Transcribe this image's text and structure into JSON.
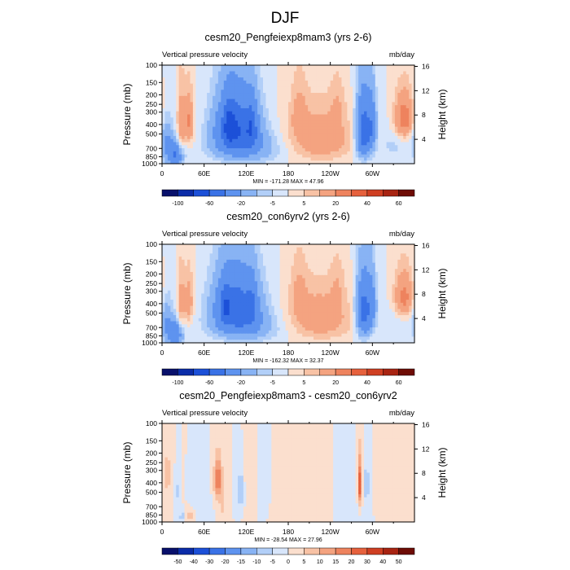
{
  "figure": {
    "title": "DJF"
  },
  "chart_data": [
    {
      "type": "heatmap",
      "title": "cesm20_Pengfeiexp8mam3 (yrs 2-6)",
      "left_string": "Vertical pressure velocity",
      "right_string": "mb/day",
      "ylabel": "Pressure (mb)",
      "y2label": "Height (km)",
      "xticks": [
        "0",
        "60E",
        "120E",
        "180",
        "120W",
        "60W"
      ],
      "xtick_lons": [
        0,
        60,
        120,
        180,
        240,
        300
      ],
      "xlim": [
        0,
        360
      ],
      "pressure_ticks": [
        "100",
        "150",
        "200",
        "250",
        "300",
        "400",
        "500",
        "700",
        "850",
        "1000"
      ],
      "pressure_levels": [
        100,
        150,
        200,
        250,
        300,
        400,
        500,
        700,
        850,
        1000
      ],
      "ylim": [
        100,
        1000
      ],
      "height_ticks": [
        "16",
        "12",
        "8",
        "4"
      ],
      "height_values": [
        16,
        12,
        8,
        4
      ],
      "stats_text": "MIN = -171.28  MAX =  47.96",
      "colorbar_labels": [
        "-100",
        "-60",
        "-20",
        "-5",
        "5",
        "20",
        "40",
        "60"
      ],
      "colorbar_colors": [
        "#08106b",
        "#0b2ca8",
        "#1c50d8",
        "#3a72e6",
        "#5e93ef",
        "#88b3f4",
        "#b2cff8",
        "#d8e6fb",
        "#fbdfce",
        "#f8c2a5",
        "#f4a380",
        "#ee835e",
        "#e6613d",
        "#cf3f22",
        "#a82412",
        "#6e0c05"
      ],
      "colorbar_bounds": [
        -100,
        -80,
        -60,
        -40,
        -20,
        -10,
        -5,
        0,
        5,
        10,
        20,
        30,
        40,
        50,
        60
      ],
      "features": [
        {
          "lon": 18,
          "p": 820,
          "dlon": 11,
          "dp": 230,
          "w": -40
        },
        {
          "lon": 6,
          "p": 560,
          "dlon": 9,
          "dp": 280,
          "w": -18
        },
        {
          "lon": 27,
          "p": 420,
          "dlon": 5,
          "dp": 280,
          "w": 18
        },
        {
          "lon": 38,
          "p": 380,
          "dlon": 7,
          "dp": 220,
          "w": 22
        },
        {
          "lon": 106,
          "p": 430,
          "dlon": 30,
          "dp": 300,
          "w": -55
        },
        {
          "lon": 95,
          "p": 400,
          "dlon": 8,
          "dp": 200,
          "w": -25
        },
        {
          "lon": 128,
          "p": 420,
          "dlon": 7,
          "dp": 220,
          "w": -25
        },
        {
          "lon": 120,
          "p": 700,
          "dlon": 50,
          "dp": 260,
          "w": -18
        },
        {
          "lon": 225,
          "p": 560,
          "dlon": 45,
          "dp": 320,
          "w": 18
        },
        {
          "lon": 195,
          "p": 300,
          "dlon": 12,
          "dp": 200,
          "w": 10
        },
        {
          "lon": 250,
          "p": 260,
          "dlon": 10,
          "dp": 160,
          "w": 7
        },
        {
          "lon": 288,
          "p": 480,
          "dlon": 11,
          "dp": 330,
          "w": -55
        },
        {
          "lon": 300,
          "p": 400,
          "dlon": 6,
          "dp": 260,
          "w": -22
        },
        {
          "lon": 345,
          "p": 350,
          "dlon": 14,
          "dp": 180,
          "w": 28
        },
        {
          "lon": 330,
          "p": 650,
          "dlon": 25,
          "dp": 300,
          "w": -6
        }
      ]
    },
    {
      "type": "heatmap",
      "title": "cesm20_con6yrv2 (yrs 2-6)",
      "left_string": "Vertical pressure velocity",
      "right_string": "mb/day",
      "ylabel": "Pressure (mb)",
      "y2label": "Height (km)",
      "xticks": [
        "0",
        "60E",
        "120E",
        "180",
        "120W",
        "60W"
      ],
      "xtick_lons": [
        0,
        60,
        120,
        180,
        240,
        300
      ],
      "xlim": [
        0,
        360
      ],
      "pressure_ticks": [
        "100",
        "150",
        "200",
        "250",
        "300",
        "400",
        "500",
        "700",
        "850",
        "1000"
      ],
      "pressure_levels": [
        100,
        150,
        200,
        250,
        300,
        400,
        500,
        700,
        850,
        1000
      ],
      "ylim": [
        100,
        1000
      ],
      "height_ticks": [
        "16",
        "12",
        "8",
        "4"
      ],
      "height_values": [
        16,
        12,
        8,
        4
      ],
      "stats_text": "MIN = -162.32  MAX =  32.37",
      "colorbar_labels": [
        "-100",
        "-60",
        "-20",
        "-5",
        "5",
        "20",
        "40",
        "60"
      ],
      "colorbar_colors": [
        "#08106b",
        "#0b2ca8",
        "#1c50d8",
        "#3a72e6",
        "#5e93ef",
        "#88b3f4",
        "#b2cff8",
        "#d8e6fb",
        "#fbdfce",
        "#f8c2a5",
        "#f4a380",
        "#ee835e",
        "#e6613d",
        "#cf3f22",
        "#a82412",
        "#6e0c05"
      ],
      "colorbar_bounds": [
        -100,
        -80,
        -60,
        -40,
        -20,
        -10,
        -5,
        0,
        5,
        10,
        20,
        30,
        40,
        50,
        60
      ],
      "features": [
        {
          "lon": 18,
          "p": 820,
          "dlon": 11,
          "dp": 230,
          "w": -38
        },
        {
          "lon": 6,
          "p": 560,
          "dlon": 9,
          "dp": 280,
          "w": -16
        },
        {
          "lon": 27,
          "p": 420,
          "dlon": 5,
          "dp": 280,
          "w": 14
        },
        {
          "lon": 38,
          "p": 380,
          "dlon": 7,
          "dp": 220,
          "w": 16
        },
        {
          "lon": 106,
          "p": 430,
          "dlon": 32,
          "dp": 300,
          "w": -50
        },
        {
          "lon": 90,
          "p": 420,
          "dlon": 8,
          "dp": 200,
          "w": -22
        },
        {
          "lon": 128,
          "p": 420,
          "dlon": 7,
          "dp": 220,
          "w": -18
        },
        {
          "lon": 120,
          "p": 700,
          "dlon": 50,
          "dp": 260,
          "w": -16
        },
        {
          "lon": 225,
          "p": 560,
          "dlon": 45,
          "dp": 320,
          "w": 17
        },
        {
          "lon": 195,
          "p": 300,
          "dlon": 12,
          "dp": 200,
          "w": 9
        },
        {
          "lon": 250,
          "p": 260,
          "dlon": 10,
          "dp": 160,
          "w": 6
        },
        {
          "lon": 288,
          "p": 480,
          "dlon": 11,
          "dp": 330,
          "w": -50
        },
        {
          "lon": 300,
          "p": 400,
          "dlon": 6,
          "dp": 260,
          "w": -18
        },
        {
          "lon": 345,
          "p": 350,
          "dlon": 14,
          "dp": 180,
          "w": 25
        },
        {
          "lon": 330,
          "p": 650,
          "dlon": 25,
          "dp": 300,
          "w": -5
        }
      ]
    },
    {
      "type": "heatmap",
      "title": "cesm20_Pengfeiexp8mam3 - cesm20_con6yrv2",
      "left_string": "Vertical pressure velocity",
      "right_string": "mb/day",
      "ylabel": "Pressure (mb)",
      "y2label": "Height (km)",
      "xticks": [
        "0",
        "60E",
        "120E",
        "180",
        "120W",
        "60W"
      ],
      "xtick_lons": [
        0,
        60,
        120,
        180,
        240,
        300
      ],
      "xlim": [
        0,
        360
      ],
      "pressure_ticks": [
        "100",
        "150",
        "200",
        "250",
        "300",
        "400",
        "500",
        "700",
        "850",
        "1000"
      ],
      "pressure_levels": [
        100,
        150,
        200,
        250,
        300,
        400,
        500,
        700,
        850,
        1000
      ],
      "ylim": [
        100,
        1000
      ],
      "height_ticks": [
        "16",
        "12",
        "8",
        "4"
      ],
      "height_values": [
        16,
        12,
        8,
        4
      ],
      "stats_text": "MIN = -28.54  MAX =  27.96",
      "colorbar_labels": [
        "-50",
        "-40",
        "-30",
        "-20",
        "-15",
        "-10",
        "-5",
        "0",
        "5",
        "10",
        "15",
        "20",
        "30",
        "40",
        "50"
      ],
      "colorbar_colors": [
        "#08106b",
        "#0b2ca8",
        "#1c50d8",
        "#3a72e6",
        "#5e93ef",
        "#88b3f4",
        "#b2cff8",
        "#d8e6fb",
        "#fbdfce",
        "#f8c2a5",
        "#f4a380",
        "#ee835e",
        "#e6613d",
        "#cf3f22",
        "#a82412",
        "#6e0c05"
      ],
      "colorbar_bounds": [
        -50,
        -40,
        -30,
        -20,
        -15,
        -10,
        -5,
        0,
        5,
        10,
        15,
        20,
        30,
        40,
        50
      ],
      "features": [
        {
          "lon": 0,
          "p": 450,
          "dlon": 12,
          "dp": 320,
          "w": 2
        },
        {
          "lon": 8,
          "p": 330,
          "dlon": 4,
          "dp": 120,
          "w": 10
        },
        {
          "lon": 22,
          "p": 500,
          "dlon": 3,
          "dp": 200,
          "w": -6
        },
        {
          "lon": 30,
          "p": 880,
          "dlon": 5,
          "dp": 90,
          "w": -12
        },
        {
          "lon": 38,
          "p": 880,
          "dlon": 6,
          "dp": 100,
          "w": 10
        },
        {
          "lon": 58,
          "p": 500,
          "dlon": 10,
          "dp": 280,
          "w": -3
        },
        {
          "lon": 80,
          "p": 380,
          "dlon": 6,
          "dp": 180,
          "w": 20
        },
        {
          "lon": 86,
          "p": 700,
          "dlon": 4,
          "dp": 150,
          "w": 8
        },
        {
          "lon": 112,
          "p": 500,
          "dlon": 5,
          "dp": 200,
          "w": -12
        },
        {
          "lon": 126,
          "p": 450,
          "dlon": 10,
          "dp": 300,
          "w": 5
        },
        {
          "lon": 140,
          "p": 450,
          "dlon": 18,
          "dp": 350,
          "w": -2
        },
        {
          "lon": 190,
          "p": 500,
          "dlon": 40,
          "dp": 400,
          "w": 2
        },
        {
          "lon": 270,
          "p": 500,
          "dlon": 20,
          "dp": 400,
          "w": -2
        },
        {
          "lon": 282,
          "p": 420,
          "dlon": 3,
          "dp": 230,
          "w": 25
        },
        {
          "lon": 292,
          "p": 420,
          "dlon": 4,
          "dp": 230,
          "w": -8
        },
        {
          "lon": 330,
          "p": 400,
          "dlon": 25,
          "dp": 300,
          "w": 3
        }
      ]
    }
  ]
}
